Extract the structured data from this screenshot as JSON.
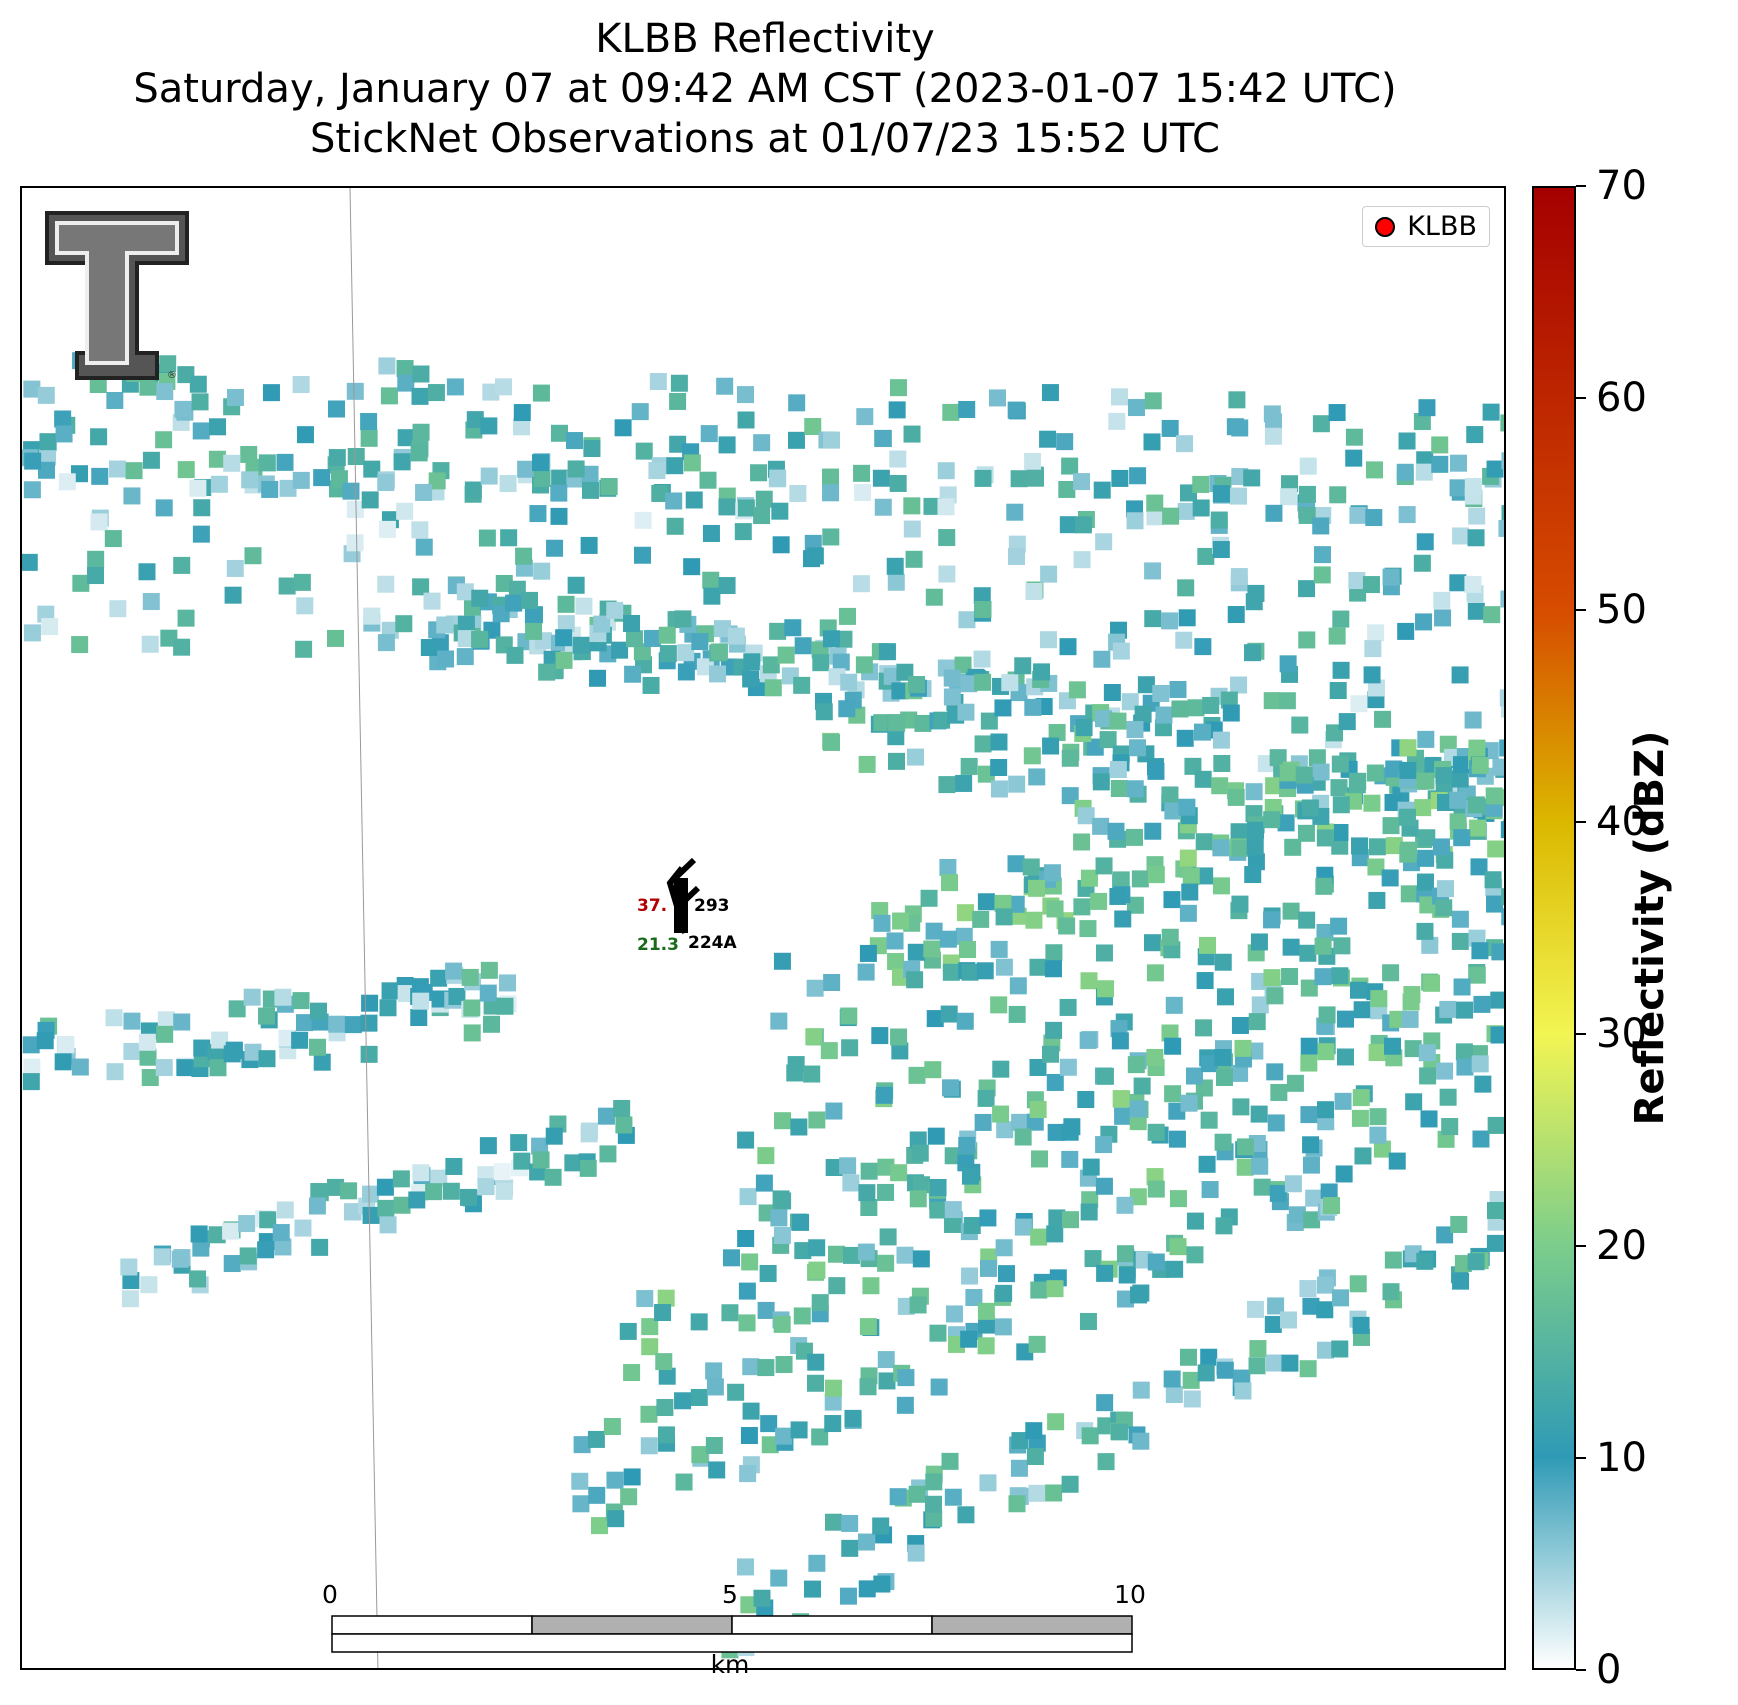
{
  "title": {
    "line1": "KLBB Reflectivity",
    "line2": "Saturday, January 07 at 09:42 AM CST (2023-01-07 15:42 UTC)",
    "line3": "StickNet Observations at 01/07/23 15:52 UTC"
  },
  "legend": {
    "label": "KLBB",
    "marker_color": "#ff0000"
  },
  "logo": {
    "name": "Texas Tech Double T",
    "mark": "®"
  },
  "station": {
    "id": "224A",
    "temperature": "37.",
    "dewpoint": "21.3",
    "pressure": "293",
    "temp_color": "#b00000",
    "dew_color": "#1a6b1a"
  },
  "scale_bar": {
    "unit": "km",
    "ticks": [
      "0",
      "5",
      "10"
    ]
  },
  "colorbar": {
    "label": "Reflectivity (dBZ)",
    "min": 0,
    "max": 70,
    "ticks": [
      "0",
      "10",
      "20",
      "30",
      "40",
      "50",
      "60",
      "70"
    ],
    "colors": [
      "#ffffff",
      "#2f9ab5",
      "#7ccd8b",
      "#f2f553",
      "#dbb800",
      "#d64c00",
      "#a50000"
    ]
  }
}
